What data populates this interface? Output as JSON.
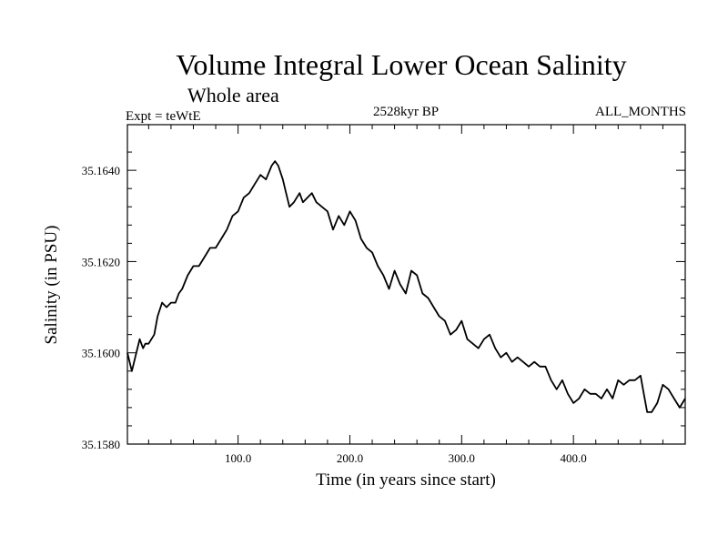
{
  "chart_data": {
    "type": "line",
    "title": "Volume Integral Lower Ocean Salinity",
    "subtitle": "Whole area",
    "left_note": "Expt = teWtE",
    "center_note": "2528kyr BP",
    "right_note": "ALL_MONTHS",
    "xlabel": "Time (in years since start)",
    "ylabel": "Salinity (in PSU)",
    "xlim": [
      1,
      500
    ],
    "ylim": [
      35.158,
      35.165
    ],
    "x_ticks": [
      100,
      200,
      300,
      400
    ],
    "x_tick_labels": [
      "100.0",
      "200.0",
      "300.0",
      "400.0"
    ],
    "y_ticks": [
      35.158,
      35.16,
      35.162,
      35.164
    ],
    "y_tick_labels": [
      "35.1580",
      "35.1600",
      "35.1620",
      "35.1640"
    ],
    "series": [
      {
        "name": "Salinity",
        "x": [
          1,
          5,
          8,
          12,
          15,
          17,
          20,
          25,
          28,
          32,
          36,
          40,
          44,
          47,
          50,
          55,
          60,
          65,
          70,
          75,
          80,
          85,
          90,
          95,
          100,
          105,
          110,
          115,
          120,
          125,
          130,
          133,
          136,
          140,
          143,
          146,
          150,
          155,
          158,
          162,
          166,
          170,
          175,
          180,
          185,
          190,
          195,
          200,
          205,
          210,
          215,
          220,
          225,
          230,
          235,
          240,
          245,
          250,
          255,
          260,
          265,
          270,
          275,
          280,
          285,
          290,
          295,
          300,
          305,
          310,
          315,
          320,
          325,
          330,
          335,
          340,
          345,
          350,
          355,
          360,
          365,
          370,
          375,
          380,
          385,
          390,
          395,
          400,
          405,
          410,
          415,
          420,
          425,
          430,
          435,
          440,
          445,
          450,
          455,
          460,
          463,
          466,
          470,
          475,
          480,
          485,
          490,
          495,
          500
        ],
        "values": [
          35.16,
          35.1596,
          35.1599,
          35.1603,
          35.1601,
          35.1602,
          35.1602,
          35.1604,
          35.1608,
          35.1611,
          35.161,
          35.1611,
          35.1611,
          35.1613,
          35.1614,
          35.1617,
          35.1619,
          35.1619,
          35.1621,
          35.1623,
          35.1623,
          35.1625,
          35.1627,
          35.163,
          35.1631,
          35.1634,
          35.1635,
          35.1637,
          35.1639,
          35.1638,
          35.1641,
          35.1642,
          35.1641,
          35.1638,
          35.1635,
          35.1632,
          35.1633,
          35.1635,
          35.1633,
          35.1634,
          35.1635,
          35.1633,
          35.1632,
          35.1631,
          35.1627,
          35.163,
          35.1628,
          35.1631,
          35.1629,
          35.1625,
          35.1623,
          35.1622,
          35.1619,
          35.1617,
          35.1614,
          35.1618,
          35.1615,
          35.1613,
          35.1618,
          35.1617,
          35.1613,
          35.1612,
          35.161,
          35.1608,
          35.1607,
          35.1604,
          35.1605,
          35.1607,
          35.1603,
          35.1602,
          35.1601,
          35.1603,
          35.1604,
          35.1601,
          35.1599,
          35.16,
          35.1598,
          35.1599,
          35.1598,
          35.1597,
          35.1598,
          35.1597,
          35.1597,
          35.1594,
          35.1592,
          35.1594,
          35.1591,
          35.1589,
          35.159,
          35.1592,
          35.1591,
          35.1591,
          35.159,
          35.1592,
          35.159,
          35.1594,
          35.1593,
          35.1594,
          35.1594,
          35.1595,
          35.1591,
          35.1587,
          35.1587,
          35.1589,
          35.1593,
          35.1592,
          35.159,
          35.1588,
          35.159
        ]
      }
    ]
  }
}
